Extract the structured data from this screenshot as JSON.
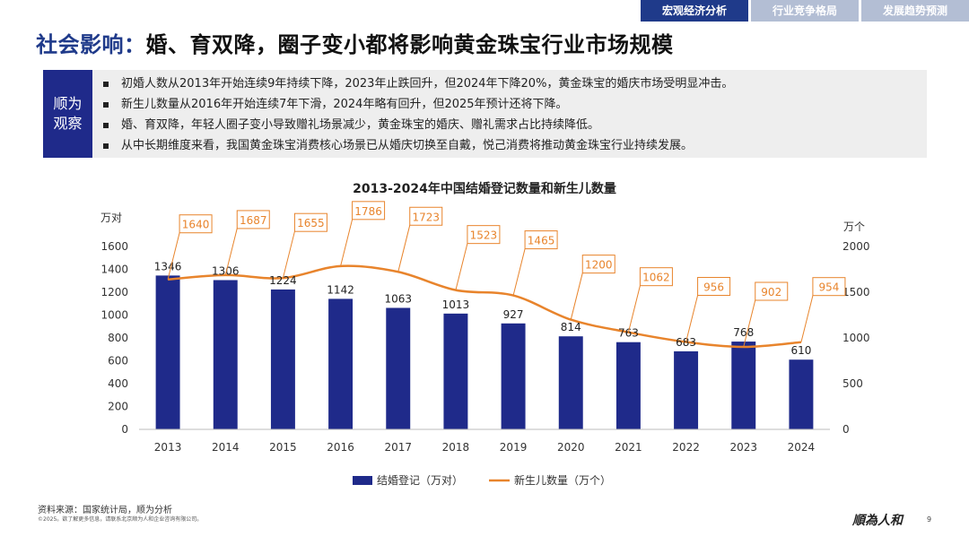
{
  "tabs": [
    {
      "label": "宏观经济分析",
      "active": true
    },
    {
      "label": "行业竞争格局",
      "active": false
    },
    {
      "label": "发展趋势预测",
      "active": false
    }
  ],
  "title": {
    "highlight": "社会影响：",
    "rest": "婚、育双降，圈子变小都将影响黄金珠宝行业市场规模"
  },
  "observation": {
    "label": "顺为观察",
    "items": [
      "初婚人数从2013年开始连续9年持续下降，2023年止跌回升，但2024年下降20%，黄金珠宝的婚庆市场受明显冲击。",
      "新生儿数量从2016年开始连续7年下滑，2024年略有回升，但2025年预计还将下降。",
      "婚、育双降，年轻人圈子变小导致赠礼场景减少，黄金珠宝的婚庆、赠礼需求占比持续降低。",
      "从中长期维度来看，我国黄金珠宝消费核心场景已从婚庆切换至自戴，悦己消费将推动黄金珠宝行业持续发展。"
    ]
  },
  "chart_data": {
    "type": "bar",
    "title": "2013-2024年中国结婚登记数量和新生儿数量",
    "categories": [
      "2013",
      "2014",
      "2015",
      "2016",
      "2017",
      "2018",
      "2019",
      "2020",
      "2021",
      "2022",
      "2023",
      "2024"
    ],
    "series": [
      {
        "name": "结婚登记（万对）",
        "type": "bar",
        "axis": "left",
        "color": "#1f2a8a",
        "values": [
          1346,
          1306,
          1224,
          1142,
          1063,
          1013,
          927,
          814,
          763,
          683,
          768,
          610
        ]
      },
      {
        "name": "新生儿数量（万个）",
        "type": "line",
        "axis": "right",
        "color": "#e8842c",
        "values": [
          1640,
          1687,
          1655,
          1786,
          1723,
          1523,
          1465,
          1200,
          1062,
          956,
          902,
          954
        ]
      }
    ],
    "ylabel": "万对",
    "ylabel_right": "万个",
    "ylim": [
      0,
      1600
    ],
    "ylim_right": [
      0,
      2000
    ],
    "yticks": [
      0,
      200,
      400,
      600,
      800,
      1000,
      1200,
      1400,
      1600
    ],
    "yticks_right": [
      0,
      500,
      1000,
      1500,
      2000
    ],
    "legend": "bottom"
  },
  "footer": {
    "source": "资料来源：国家统计局，顺为分析",
    "copyright": "©2025。欲了解更多信息，请联系北京顺为人和企业咨询有限公司。",
    "logo": "順為人和",
    "page": "9"
  }
}
